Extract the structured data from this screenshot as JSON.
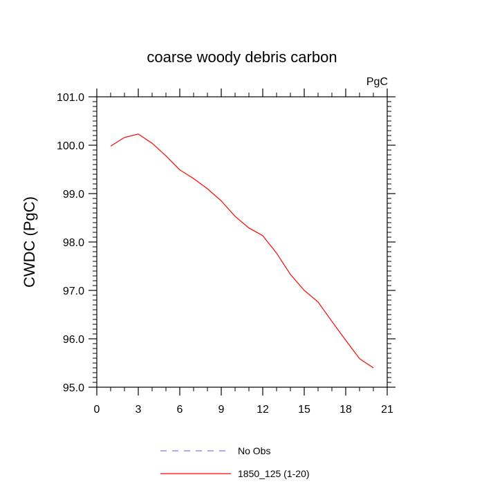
{
  "chart_data": {
    "type": "line",
    "title": "coarse woody debris carbon",
    "units_label": "PgC",
    "xlabel": "",
    "ylabel": "CWDC  (PgC)",
    "xlim": [
      0,
      21
    ],
    "ylim": [
      95.0,
      101.0
    ],
    "x_ticks": [
      0,
      3,
      6,
      9,
      12,
      15,
      18,
      21
    ],
    "y_ticks": [
      95.0,
      96.0,
      97.0,
      98.0,
      99.0,
      100.0,
      101.0
    ],
    "x_tick_labels": [
      "0",
      "3",
      "6",
      "9",
      "12",
      "15",
      "18",
      "21"
    ],
    "y_tick_labels": [
      "95.0",
      "96.0",
      "97.0",
      "98.0",
      "99.0",
      "100.0",
      "101.0"
    ],
    "grid": false,
    "legend_position": "bottom",
    "series": [
      {
        "name": "No Obs",
        "color": "#7777ff",
        "dashed": true,
        "x": [],
        "y": []
      },
      {
        "name": "1850_125 (1-20)",
        "color": "#ff0000",
        "dashed": false,
        "x": [
          1,
          2,
          3,
          4,
          5,
          6,
          7,
          8,
          9,
          10,
          11,
          12,
          13,
          14,
          15,
          16,
          17,
          18,
          19,
          20
        ],
        "y": [
          99.98,
          100.16,
          100.23,
          100.04,
          99.78,
          99.49,
          99.31,
          99.1,
          98.85,
          98.53,
          98.29,
          98.13,
          97.77,
          97.33,
          97.0,
          96.76,
          96.36,
          95.97,
          95.59,
          95.4
        ]
      }
    ]
  }
}
